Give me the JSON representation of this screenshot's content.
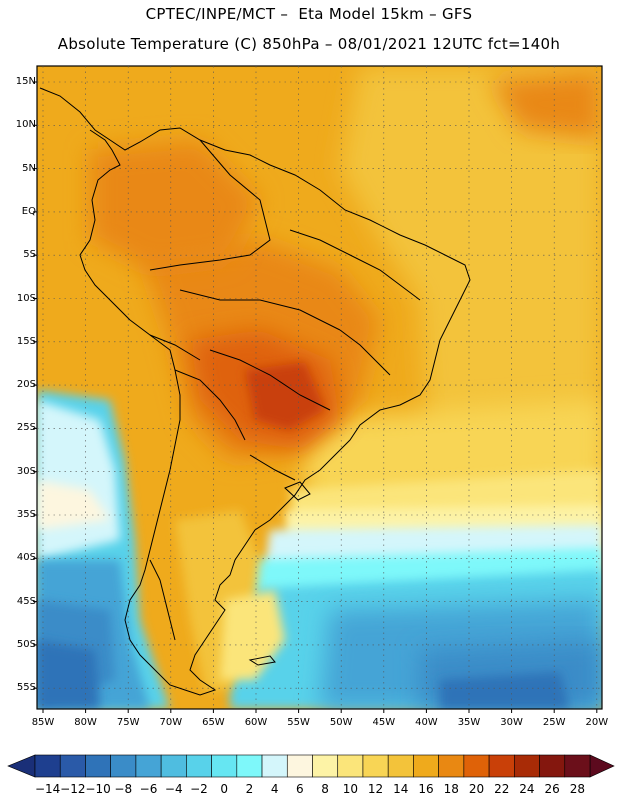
{
  "header": {
    "line1": "CPTEC/INPE/MCT –  Eta Model 15km – GFS",
    "line2": "Absolute Temperature (C) 850hPa – 08/01/2021 12UTC fct=140h"
  },
  "map": {
    "latitude_labels": [
      "15N",
      "10N",
      "5N",
      "EQ",
      "5S",
      "10S",
      "15S",
      "20S",
      "25S",
      "30S",
      "35S",
      "40S",
      "45S",
      "50S",
      "55S"
    ],
    "longitude_labels": [
      "85W",
      "80W",
      "75W",
      "70W",
      "65W",
      "60W",
      "55W",
      "50W",
      "45W",
      "40W",
      "35W",
      "30W",
      "25W",
      "20W"
    ]
  },
  "colorbar": {
    "labels": [
      "-14",
      "-12",
      "-10",
      "-8",
      "-6",
      "-4",
      "-2",
      "0",
      "2",
      "4",
      "6",
      "8",
      "10",
      "12",
      "14",
      "16",
      "18",
      "20",
      "22",
      "24",
      "26",
      "28"
    ],
    "colors": [
      "#1e3f8f",
      "#2a5aa8",
      "#2f73b8",
      "#3a8cc8",
      "#45a4d6",
      "#4fbde0",
      "#58d2ea",
      "#66e6f2",
      "#7ef8fa",
      "#d4f6fb",
      "#fdf6df",
      "#fdf3a6",
      "#fbe57a",
      "#f8d555",
      "#f3c33a",
      "#efaa1c",
      "#e98812",
      "#df6208",
      "#c94008",
      "#a82b06",
      "#84170e",
      "#6b0f1a"
    ]
  }
}
